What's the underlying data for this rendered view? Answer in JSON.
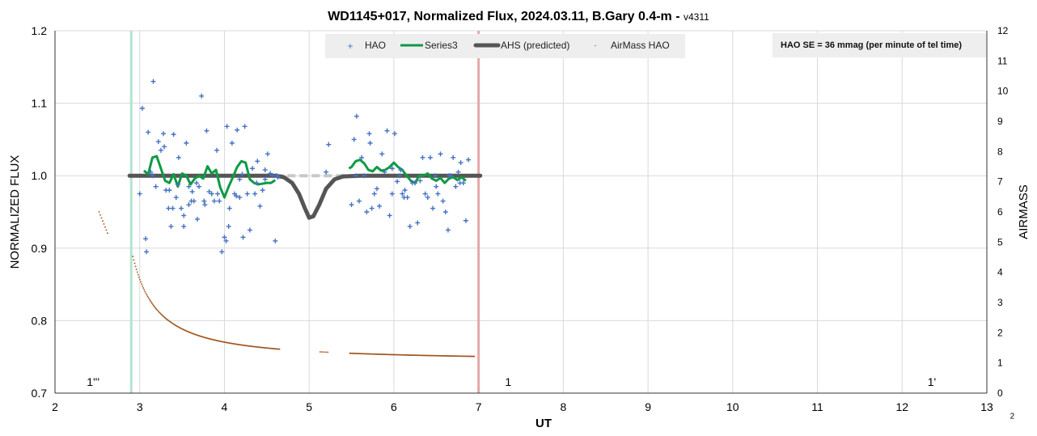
{
  "chart_data": {
    "type": "scatter",
    "title_main": "WD1145+017, Normalized Flux, 2024.03.11, B.Gary 0.4-m - ",
    "title_version": "v4311",
    "xlabel": "UT",
    "ylabel": "NORMALIZED FLUX",
    "y2label": "AIRMASS",
    "xlim": [
      2,
      13
    ],
    "ylim": [
      0.7,
      1.2
    ],
    "y2lim": [
      0,
      12
    ],
    "x_ticks": [
      "2",
      "3",
      "4",
      "5",
      "6",
      "7",
      "8",
      "9",
      "10",
      "11",
      "12",
      "13"
    ],
    "y_ticks": [
      "0.7",
      "0.8",
      "0.9",
      "1.0",
      "1.1",
      "1.2"
    ],
    "y2_ticks": [
      "0",
      "1",
      "2",
      "3",
      "4",
      "5",
      "6",
      "7",
      "8",
      "9",
      "10",
      "11",
      "12"
    ],
    "grid": true,
    "legend_position": "top",
    "legend": [
      "HAO",
      "Series3",
      "AHS (predicted)",
      "AirMass HAO"
    ],
    "annotation_se": "HAO SE = 36 mmag (per minute of tel time)",
    "annotations": [
      {
        "text": "1'''",
        "x": 2.45,
        "y": 0.71
      },
      {
        "text": "1",
        "x": 7.35,
        "y": 0.71
      },
      {
        "text": "1'",
        "x": 12.35,
        "y": 0.71
      },
      {
        "text": "2",
        "x": 13.3,
        "y": 0.665
      }
    ],
    "vlines": [
      {
        "x": 2.9,
        "color": "#b5e3cf"
      },
      {
        "x": 7.0,
        "color": "#e6a7a7"
      }
    ],
    "colors": {
      "hao": "#4472c4",
      "series3": "#0f9a45",
      "ahs": "#555555",
      "ahs_dashed": "#c8c8c8",
      "airmass": "#a0531a",
      "grid": "#d9d9d9",
      "legend_bg": "#eeeeee"
    },
    "series": [
      {
        "name": "HAO",
        "x": [
          3.0,
          3.03,
          3.07,
          3.1,
          3.13,
          3.16,
          3.19,
          3.22,
          3.25,
          3.28,
          3.31,
          3.34,
          3.37,
          3.4,
          3.43,
          3.46,
          3.49,
          3.52,
          3.55,
          3.58,
          3.61,
          3.64,
          3.67,
          3.7,
          3.73,
          3.76,
          3.79,
          3.82,
          3.85,
          3.88,
          3.91,
          3.94,
          3.97,
          4.0,
          4.03,
          4.06,
          4.09,
          4.12,
          4.15,
          4.18,
          4.21,
          4.24,
          4.27,
          4.3,
          4.33,
          4.36,
          4.39,
          4.42,
          4.45,
          4.48,
          4.51,
          4.54,
          4.57,
          4.6,
          4.63,
          5.2,
          5.23,
          5.5,
          5.53,
          5.56,
          5.59,
          5.62,
          5.65,
          5.68,
          5.71,
          5.74,
          5.77,
          5.8,
          5.83,
          5.86,
          5.89,
          5.92,
          5.95,
          5.98,
          6.01,
          6.04,
          6.07,
          6.1,
          6.13,
          6.16,
          6.19,
          6.22,
          6.25,
          6.28,
          6.31,
          6.34,
          6.37,
          6.4,
          6.43,
          6.46,
          6.49,
          6.52,
          6.55,
          6.58,
          6.61,
          6.64,
          6.67,
          6.7,
          6.73,
          6.76,
          6.79,
          6.82,
          6.85,
          6.88,
          3.08,
          3.35,
          3.52,
          3.62,
          3.92,
          4.02,
          4.18,
          4.48,
          3.15,
          3.45,
          3.77,
          4.14,
          4.38,
          5.72,
          6.12,
          6.5,
          3.29,
          3.58,
          4.05,
          4.62,
          5.98,
          6.65,
          3.39,
          3.68,
          4.22,
          5.55,
          6.08,
          6.78
        ],
        "y": [
          0.975,
          1.093,
          0.913,
          1.06,
          1.005,
          1.13,
          0.985,
          1.047,
          1.035,
          1.058,
          0.98,
          0.955,
          0.93,
          1.057,
          0.97,
          1.025,
          0.955,
          0.945,
          1.045,
          0.985,
          0.965,
          0.965,
          0.99,
          0.985,
          1.11,
          0.965,
          1.062,
          0.978,
          0.975,
          0.965,
          1.035,
          0.965,
          0.895,
          0.915,
          1.068,
          0.955,
          1.045,
          0.975,
          1.063,
          0.995,
          1.002,
          1.068,
          0.975,
          0.925,
          1.01,
          0.975,
          1.02,
          0.958,
          0.98,
          1.008,
          1.03,
          1.003,
          1.0,
          0.91,
          0.998,
          1.005,
          1.043,
          0.96,
          1.05,
          1.082,
          0.965,
          1.025,
          1.0,
          0.95,
          1.058,
          0.955,
          0.975,
          0.982,
          0.958,
          1.03,
          1.005,
          1.062,
          0.945,
          1.01,
          1.058,
          0.992,
          1.0,
          0.975,
          0.98,
          0.97,
          0.93,
          0.99,
          0.99,
          0.935,
          0.993,
          1.025,
          0.975,
          0.97,
          1.025,
          0.955,
          1.0,
          0.975,
          1.03,
          0.965,
          0.95,
          0.925,
          1.0,
          1.025,
          0.985,
          1.005,
          1.018,
          0.99,
          0.938,
          1.022,
          0.895,
          0.98,
          0.93,
          0.978,
          0.975,
          0.91,
          0.97,
          0.995,
          1.0,
          0.988,
          0.96,
          0.972,
          0.99,
          1.045,
          0.97,
          0.985,
          1.04,
          0.96,
          0.93,
          1.0,
          0.975,
          1.0,
          0.955,
          0.94,
          0.915,
          1.0,
          1.008,
          0.99
        ]
      },
      {
        "name": "Series3",
        "segments": [
          {
            "x": [
              3.05,
              3.1,
              3.15,
              3.2,
              3.25,
              3.3,
              3.35,
              3.4,
              3.45,
              3.5,
              3.55,
              3.6,
              3.65,
              3.7,
              3.75,
              3.8,
              3.85,
              3.9,
              3.95,
              4.0,
              4.05,
              4.1,
              4.15,
              4.2,
              4.25,
              4.3,
              4.35,
              4.4,
              4.45,
              4.5,
              4.55,
              4.6
            ],
            "y": [
              1.007,
              1.002,
              1.025,
              1.027,
              1.01,
              0.993,
              0.99,
              1.002,
              0.985,
              1.003,
              1.0,
              0.988,
              0.996,
              1.0,
              0.996,
              1.013,
              1.003,
              1.008,
              0.984,
              0.97,
              0.985,
              0.998,
              1.012,
              1.02,
              1.018,
              0.995,
              0.99,
              0.988,
              0.989,
              0.99,
              0.99,
              0.994
            ]
          },
          {
            "x": [
              5.47,
              5.5,
              5.55,
              5.6,
              5.65,
              5.7,
              5.75,
              5.8,
              5.85,
              5.9,
              5.95,
              6.0,
              6.05,
              6.1,
              6.15,
              6.2,
              6.25,
              6.3,
              6.35,
              6.4,
              6.45,
              6.5,
              6.55,
              6.6,
              6.65,
              6.7,
              6.75,
              6.8,
              6.85
            ],
            "y": [
              1.01,
              1.012,
              1.02,
              1.022,
              1.017,
              1.008,
              1.006,
              1.012,
              1.007,
              1.008,
              1.012,
              1.018,
              1.012,
              1.008,
              1.0,
              0.993,
              0.99,
              1.0,
              1.0,
              1.003,
              0.996,
              0.993,
              0.997,
              0.99,
              0.996,
              0.998,
              0.994,
              0.998,
              0.993
            ]
          }
        ]
      },
      {
        "name": "AHS (predicted)",
        "x": [
          2.88,
          3.5,
          4.0,
          4.4,
          4.6,
          4.7,
          4.8,
          4.88,
          4.95,
          5.0,
          5.05,
          5.12,
          5.2,
          5.3,
          5.4,
          5.6,
          6.0,
          6.5,
          7.02
        ],
        "y": [
          1.0,
          1.0,
          1.0,
          1.0,
          1.0,
          0.998,
          0.99,
          0.975,
          0.955,
          0.942,
          0.944,
          0.96,
          0.982,
          0.995,
          0.999,
          1.0,
          1.0,
          1.0,
          1.0
        ],
        "dashed_x_range": [
          4.6,
          5.4
        ]
      },
      {
        "name": "AirMass HAO",
        "axis": "y2",
        "segments": [
          {
            "x_range": [
              2.52,
              2.62
            ],
            "count": 8
          },
          {
            "x_range": [
              2.92,
              4.65
            ],
            "count": 170
          },
          {
            "x_range": [
              5.13,
              5.22
            ],
            "count": 5
          },
          {
            "x_range": [
              5.48,
              6.95
            ],
            "count": 150
          }
        ],
        "model": "airmass ≈ sec(zenith) with transit near UT 9; airmass(3.0) ≈ 4.1, airmass(4.0) ≈ 2.2, airmass(5.0) ≈ 1.6, airmass(6.0) ≈ 1.3, airmass(6.9) ≈ 1.2; early points near 6.0"
      }
    ]
  }
}
